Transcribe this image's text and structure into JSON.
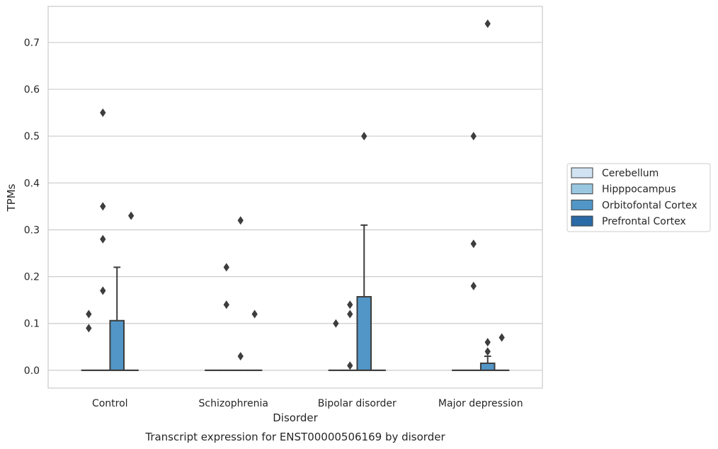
{
  "chart_data": {
    "type": "box",
    "title": "",
    "caption": "Transcript expression for ENST00000506169 by disorder",
    "xlabel": "Disorder",
    "ylabel": "TPMs",
    "ylim": [
      -0.038,
      0.777
    ],
    "yticks": [
      0.0,
      0.1,
      0.2,
      0.3,
      0.4,
      0.5,
      0.6,
      0.7
    ],
    "ytick_labels": [
      "0.0",
      "0.1",
      "0.2",
      "0.3",
      "0.4",
      "0.5",
      "0.6",
      "0.7"
    ],
    "grid": "horizontal",
    "legend_position": "right",
    "categories": [
      "Control",
      "Schizophrenia",
      "Bipolar disorder",
      "Major depression"
    ],
    "series": [
      {
        "name": "Cerebellum",
        "color": "#d1e3f3",
        "boxes": [
          {
            "q1": 0,
            "median": 0,
            "q3": 0,
            "whisker_low": 0,
            "whisker_high": 0,
            "outliers": [
              0.09,
              0.12
            ]
          },
          {
            "q1": 0,
            "median": 0,
            "q3": 0,
            "whisker_low": 0,
            "whisker_high": 0,
            "outliers": []
          },
          {
            "q1": 0,
            "median": 0,
            "q3": 0,
            "whisker_low": 0,
            "whisker_high": 0,
            "outliers": [
              0.1
            ]
          },
          {
            "q1": 0,
            "median": 0,
            "q3": 0,
            "whisker_low": 0,
            "whisker_high": 0,
            "outliers": []
          }
        ]
      },
      {
        "name": "Hipppocampus",
        "color": "#9ac8e1",
        "boxes": [
          {
            "q1": 0,
            "median": 0,
            "q3": 0,
            "whisker_low": 0,
            "whisker_high": 0,
            "outliers": [
              0.17,
              0.28,
              0.35,
              0.55
            ]
          },
          {
            "q1": 0,
            "median": 0,
            "q3": 0,
            "whisker_low": 0,
            "whisker_high": 0,
            "outliers": [
              0.14,
              0.22
            ]
          },
          {
            "q1": 0,
            "median": 0,
            "q3": 0,
            "whisker_low": 0,
            "whisker_high": 0,
            "outliers": [
              0.01,
              0.12,
              0.14
            ]
          },
          {
            "q1": 0,
            "median": 0,
            "q3": 0,
            "whisker_low": 0,
            "whisker_high": 0,
            "outliers": [
              0.18,
              0.27,
              0.5
            ]
          }
        ]
      },
      {
        "name": "Orbitofontal Cortex",
        "color": "#5296c7",
        "boxes": [
          {
            "q1": 0,
            "median": 0,
            "q3": 0.106,
            "whisker_low": 0,
            "whisker_high": 0.22,
            "outliers": []
          },
          {
            "q1": 0,
            "median": 0,
            "q3": 0,
            "whisker_low": 0,
            "whisker_high": 0,
            "outliers": [
              0.03,
              0.32
            ]
          },
          {
            "q1": 0,
            "median": 0,
            "q3": 0.157,
            "whisker_low": 0,
            "whisker_high": 0.31,
            "outliers": [
              0.5
            ]
          },
          {
            "q1": 0,
            "median": 0,
            "q3": 0.015,
            "whisker_low": 0,
            "whisker_high": 0.03,
            "outliers": [
              0.04,
              0.06,
              0.74
            ]
          }
        ]
      },
      {
        "name": "Prefrontal Cortex",
        "color": "#2b6aa5",
        "boxes": [
          {
            "q1": 0,
            "median": 0,
            "q3": 0,
            "whisker_low": 0,
            "whisker_high": 0,
            "outliers": [
              0.33
            ]
          },
          {
            "q1": 0,
            "median": 0,
            "q3": 0,
            "whisker_low": 0,
            "whisker_high": 0,
            "outliers": [
              0.12
            ]
          },
          {
            "q1": 0,
            "median": 0,
            "q3": 0,
            "whisker_low": 0,
            "whisker_high": 0,
            "outliers": []
          },
          {
            "q1": 0,
            "median": 0,
            "q3": 0,
            "whisker_low": 0,
            "whisker_high": 0,
            "outliers": [
              0.07
            ]
          }
        ]
      }
    ]
  }
}
